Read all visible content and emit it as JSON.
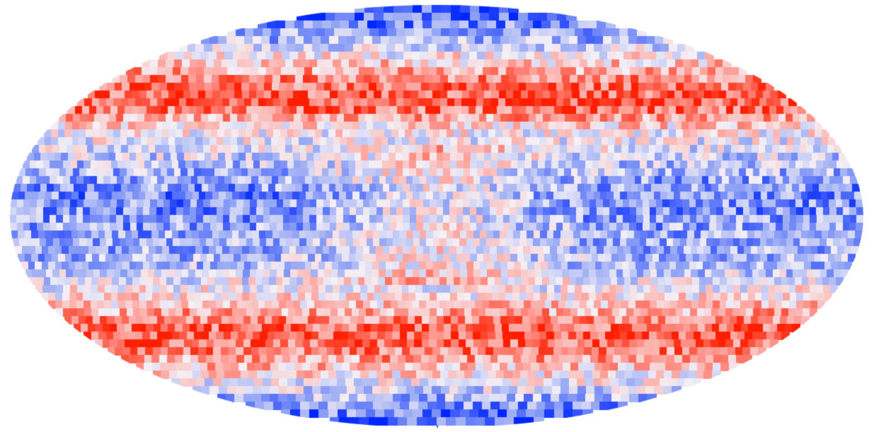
{
  "map": {
    "projection": "mollweide",
    "pixelization": "healpix-like",
    "colormap": "bwr",
    "colors": {
      "negative_strong": "#0026ff",
      "negative_mid": "#8fa2f5",
      "neutral": "#f4f0f6",
      "positive_mid": "#ff9c94",
      "positive_strong": "#ff1e00",
      "background": "#ffffff"
    },
    "latitude_bands": [
      {
        "lat_range": [
          75,
          90
        ],
        "level": -0.8
      },
      {
        "lat_range": [
          60,
          75
        ],
        "level": -0.35
      },
      {
        "lat_range": [
          45,
          60
        ],
        "level": 0.45
      },
      {
        "lat_range": [
          35,
          45
        ],
        "level": 0.8
      },
      {
        "lat_range": [
          25,
          35
        ],
        "level": 0.05
      },
      {
        "lat_range": [
          -10,
          25
        ],
        "level": -0.55
      },
      {
        "lat_range": [
          -25,
          -10
        ],
        "level": -0.3
      },
      {
        "lat_range": [
          -35,
          -25
        ],
        "level": 0.2
      },
      {
        "lat_range": [
          -50,
          -35
        ],
        "level": 0.8
      },
      {
        "lat_range": [
          -62,
          -50
        ],
        "level": 0.25
      },
      {
        "lat_range": [
          -75,
          -62
        ],
        "level": -0.3
      },
      {
        "lat_range": [
          -90,
          -75
        ],
        "level": -0.75
      }
    ]
  }
}
